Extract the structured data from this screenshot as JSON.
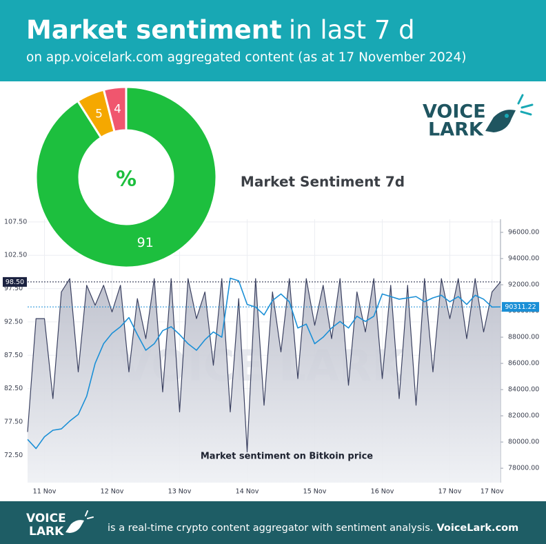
{
  "header": {
    "title_strong": "Market sentiment",
    "title_rest": "in last 7 d",
    "subtitle": "on app.voicelark.com aggregated content (as at 17 November 2024)",
    "logo_line1": "VOICE",
    "logo_line2": "LARK"
  },
  "chart_data": [
    {
      "type": "pie",
      "title": "Market Sentiment 7d",
      "center_label": "%",
      "values": [
        91,
        5,
        4
      ],
      "colors": [
        "#1dbf3e",
        "#f5a800",
        "#f0566e"
      ],
      "hole": true
    },
    {
      "type": "line",
      "title": "Market sentiment on Bitkoin price",
      "watermark": "VOICE LARK",
      "categories": [
        null,
        null,
        "11 Nov",
        null,
        null,
        null,
        null,
        null,
        null,
        null,
        "12 Nov",
        null,
        null,
        null,
        null,
        null,
        null,
        null,
        "13 Nov",
        null,
        null,
        null,
        null,
        null,
        null,
        null,
        "14 Nov",
        null,
        null,
        null,
        null,
        null,
        null,
        null,
        "15 Nov",
        null,
        null,
        null,
        null,
        null,
        null,
        null,
        "16 Nov",
        null,
        null,
        null,
        null,
        null,
        null,
        null,
        "17 Nov",
        null,
        null,
        null,
        null,
        "17 Nov",
        null
      ],
      "series": [
        {
          "color": "#3a4060",
          "area": "#c9cbd5",
          "values": [
            76,
            93,
            93,
            81,
            97,
            99,
            85,
            98,
            95,
            98,
            94,
            98,
            85,
            96,
            90,
            99,
            82,
            99,
            79,
            99,
            93,
            97,
            86,
            99,
            79,
            96,
            73,
            99,
            80,
            97,
            88,
            99,
            84,
            99,
            92,
            98,
            90,
            99,
            83,
            97,
            91,
            99,
            84,
            98,
            81,
            98,
            80,
            99,
            85,
            99,
            93,
            99,
            90,
            99,
            91,
            97,
            98.5
          ],
          "end_label": {
            "value": 98.5,
            "label": "98.50"
          },
          "end_color": "#1b2240"
        },
        {
          "color": "#1a8fd6",
          "axis": "y2",
          "values": [
            80200,
            79500,
            80400,
            80900,
            81000,
            81600,
            82100,
            83500,
            86000,
            87500,
            88300,
            88800,
            89500,
            88200,
            87000,
            87500,
            88500,
            88800,
            88200,
            87500,
            87000,
            87800,
            88400,
            88000,
            92500,
            92300,
            90500,
            90300,
            89700,
            90800,
            91300,
            90700,
            88700,
            89000,
            87500,
            88000,
            88700,
            89200,
            88700,
            89600,
            89200,
            89600,
            91300,
            91100,
            90900,
            91000,
            91100,
            90700,
            91000,
            91200,
            90700,
            91100,
            90500,
            91200,
            90900,
            90300,
            90311.22
          ],
          "end_label": {
            "value": 90311.22,
            "label": "90311.22"
          },
          "end_color": "#1a8fd6"
        }
      ],
      "ylim": [
        68.4,
        107.9
      ],
      "yticks": [
        {
          "value": 72.5,
          "label": "72.50"
        },
        {
          "value": 77.5,
          "label": "77.50"
        },
        {
          "value": 82.5,
          "label": "82.50"
        },
        {
          "value": 87.5,
          "label": "87.50"
        },
        {
          "value": 92.5,
          "label": "92.50"
        },
        {
          "value": 97.5,
          "label": "97.50"
        },
        {
          "value": 102.5,
          "label": "102.50"
        },
        {
          "value": 107.5,
          "label": "107.50"
        }
      ],
      "y2lim": [
        76900,
        97000
      ],
      "y2ticks": [
        {
          "value": 78000,
          "label": "78000.00"
        },
        {
          "value": 80000,
          "label": "80000.00"
        },
        {
          "value": 82000,
          "label": "82000.00"
        },
        {
          "value": 84000,
          "label": "84000.00"
        },
        {
          "value": 86000,
          "label": "86000.00"
        },
        {
          "value": 88000,
          "label": "88000.00"
        },
        {
          "value": 90000,
          "label": "90000.00"
        },
        {
          "value": 92000,
          "label": "92000.00"
        },
        {
          "value": 94000,
          "label": "94000.00"
        },
        {
          "value": 96000,
          "label": "96000.00"
        }
      ],
      "grid": true
    }
  ],
  "footer": {
    "logo_line1": "VOICE",
    "logo_line2": "LARK",
    "text": "is a real-time crypto content aggregator with sentiment analysis.",
    "link": "VoiceLark.com"
  }
}
